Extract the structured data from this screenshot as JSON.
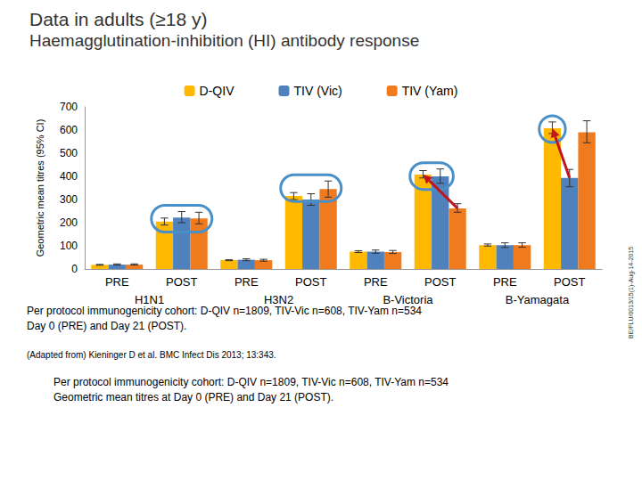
{
  "chart_data": {
    "type": "bar",
    "title": "Data in adults (≥18 y)",
    "subtitle": "Haemagglutination-inhibition (HI) antibody response",
    "y_label": "Geometric mean titres (95% CI)",
    "categories": [
      "PRE",
      "POST",
      "PRE",
      "POST",
      "PRE",
      "POST",
      "PRE",
      "POST"
    ],
    "groups": [
      "H1N1",
      "H3N2",
      "B-Victoria",
      "B-Yamagata"
    ],
    "series": [
      {
        "name": "D-QIV",
        "color": "#FFB900",
        "values": [
          18,
          205,
          38,
          315,
          75,
          408,
          103,
          608
        ],
        "errors": [
          [
            16,
            20
          ],
          [
            190,
            220
          ],
          [
            36,
            40
          ],
          [
            300,
            330
          ],
          [
            71,
            79
          ],
          [
            393,
            425
          ],
          [
            99,
            108
          ],
          [
            585,
            635
          ]
        ]
      },
      {
        "name": "TIV (Vic)",
        "color": "#4F81BD",
        "values": [
          19,
          222,
          40,
          300,
          75,
          400,
          103,
          393
        ],
        "errors": [
          [
            17,
            22
          ],
          [
            200,
            248
          ],
          [
            36,
            44
          ],
          [
            275,
            325
          ],
          [
            68,
            82
          ],
          [
            370,
            432
          ],
          [
            93,
            113
          ],
          [
            355,
            430
          ]
        ]
      },
      {
        "name": "TIV (Yam)",
        "color": "#F07A1E",
        "values": [
          19,
          218,
          38,
          345,
          73,
          262,
          103,
          590
        ],
        "errors": [
          [
            17,
            22
          ],
          [
            195,
            245
          ],
          [
            34,
            42
          ],
          [
            310,
            380
          ],
          [
            67,
            80
          ],
          [
            245,
            282
          ],
          [
            94,
            113
          ],
          [
            545,
            640
          ]
        ]
      }
    ],
    "ylim": [
      0,
      700
    ],
    "yticks": [
      0,
      100,
      200,
      300,
      400,
      500,
      600,
      700
    ],
    "grid": false,
    "legend": "top",
    "data_labels": false,
    "notes": [
      "Per protocol immunogenicity cohort: D-QIV n=1809, TIV-Vic n=608, TIV-Yam n=534",
      "Day 0 (PRE) and Day 21 (POST).",
      "(Adapted from) Kieninger D et al. BMC Infect Dis 2013; 13:343.",
      "Per protocol immunogenicity cohort: D-QIV n=1809, TIV-Vic n=608, TIV-Yam n=534",
      "Geometric mean titres at Day 0 (PRE) and Day 21 (POST)."
    ],
    "side_code": "BE/FLU/0013/15(1)-Aug-14-2015"
  }
}
